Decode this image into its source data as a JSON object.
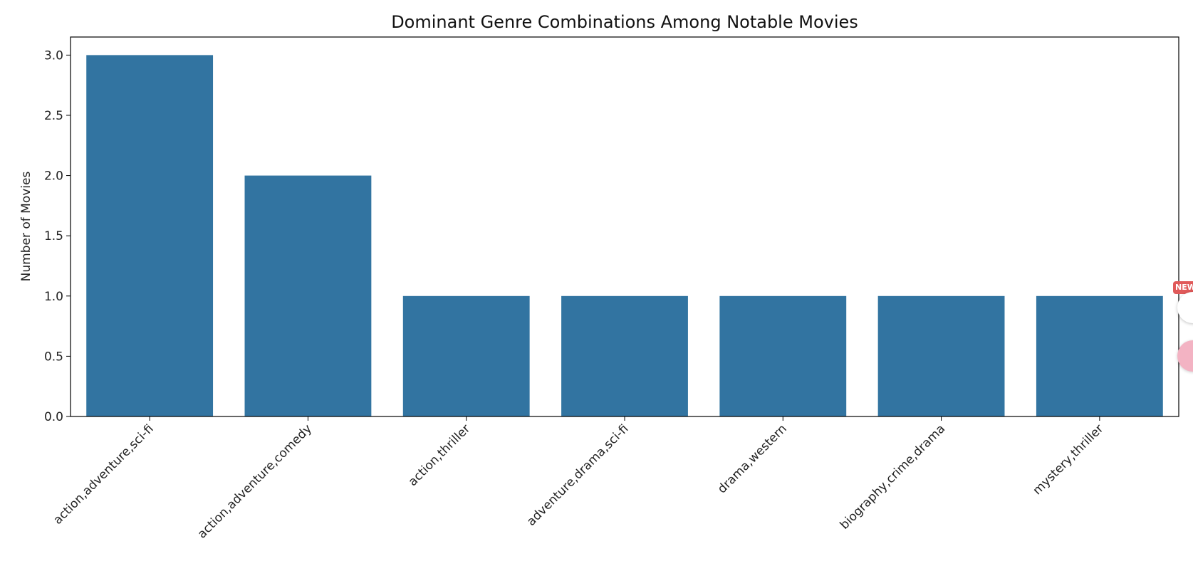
{
  "chart_data": {
    "type": "bar",
    "title": "Dominant Genre Combinations Among Notable Movies",
    "xlabel": "",
    "ylabel": "Number of Movies",
    "categories": [
      "action,adventure,sci-fi",
      "action,adventure,comedy",
      "action,thriller",
      "adventure,drama,sci-fi",
      "drama,western",
      "biography,crime,drama",
      "mystery,thriller"
    ],
    "values": [
      3,
      2,
      1,
      1,
      1,
      1,
      1
    ],
    "ylim": [
      0,
      3.15
    ],
    "yticks": [
      "0.0",
      "0.5",
      "1.0",
      "1.5",
      "2.0",
      "2.5",
      "3.0"
    ],
    "grid": false,
    "bar_color": "#3274a1"
  },
  "overlay": {
    "badge_text": "NEW",
    "badge_color": "#e05a5a",
    "icons": [
      "copy-icon",
      "extension-icon"
    ]
  }
}
